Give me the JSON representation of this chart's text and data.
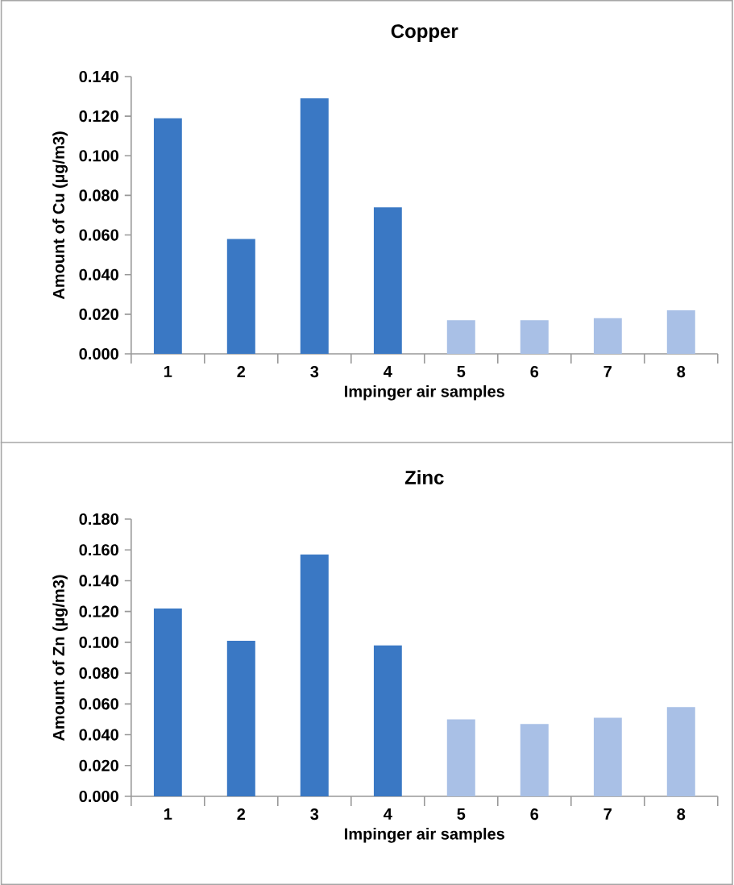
{
  "chart_data": [
    {
      "type": "bar",
      "title": "Copper",
      "xlabel": "Impinger air samples",
      "ylabel": "Amount of Cu (µg/m3)",
      "categories": [
        "1",
        "2",
        "3",
        "4",
        "5",
        "6",
        "7",
        "8"
      ],
      "values": [
        0.119,
        0.058,
        0.129,
        0.074,
        0.017,
        0.017,
        0.018,
        0.022
      ],
      "colors": [
        "#3a78c4",
        "#3a78c4",
        "#3a78c4",
        "#3a78c4",
        "#a9c0e6",
        "#a9c0e6",
        "#a9c0e6",
        "#a9c0e6"
      ],
      "ylim": [
        0,
        0.14
      ],
      "yticks": [
        {
          "value": 0,
          "label": "0.000"
        },
        {
          "value": 0.02,
          "label": "0.020"
        },
        {
          "value": 0.04,
          "label": "0.040"
        },
        {
          "value": 0.06,
          "label": "0.060"
        },
        {
          "value": 0.08,
          "label": "0.080"
        },
        {
          "value": 0.1,
          "label": "0.100"
        },
        {
          "value": 0.12,
          "label": "0.120"
        },
        {
          "value": 0.14,
          "label": "0.140"
        }
      ]
    },
    {
      "type": "bar",
      "title": "Zinc",
      "xlabel": "Impinger air samples",
      "ylabel": "Amount of Zn (µg/m3)",
      "categories": [
        "1",
        "2",
        "3",
        "4",
        "5",
        "6",
        "7",
        "8"
      ],
      "values": [
        0.122,
        0.101,
        0.157,
        0.098,
        0.05,
        0.047,
        0.051,
        0.058
      ],
      "colors": [
        "#3a78c4",
        "#3a78c4",
        "#3a78c4",
        "#3a78c4",
        "#a9c0e6",
        "#a9c0e6",
        "#a9c0e6",
        "#a9c0e6"
      ],
      "ylim": [
        0,
        0.18
      ],
      "yticks": [
        {
          "value": 0,
          "label": "0.000"
        },
        {
          "value": 0.02,
          "label": "0.020"
        },
        {
          "value": 0.04,
          "label": "0.040"
        },
        {
          "value": 0.06,
          "label": "0.060"
        },
        {
          "value": 0.08,
          "label": "0.080"
        },
        {
          "value": 0.1,
          "label": "0.100"
        },
        {
          "value": 0.12,
          "label": "0.120"
        },
        {
          "value": 0.14,
          "label": "0.140"
        },
        {
          "value": 0.16,
          "label": "0.160"
        },
        {
          "value": 0.18,
          "label": "0.180"
        }
      ]
    }
  ]
}
